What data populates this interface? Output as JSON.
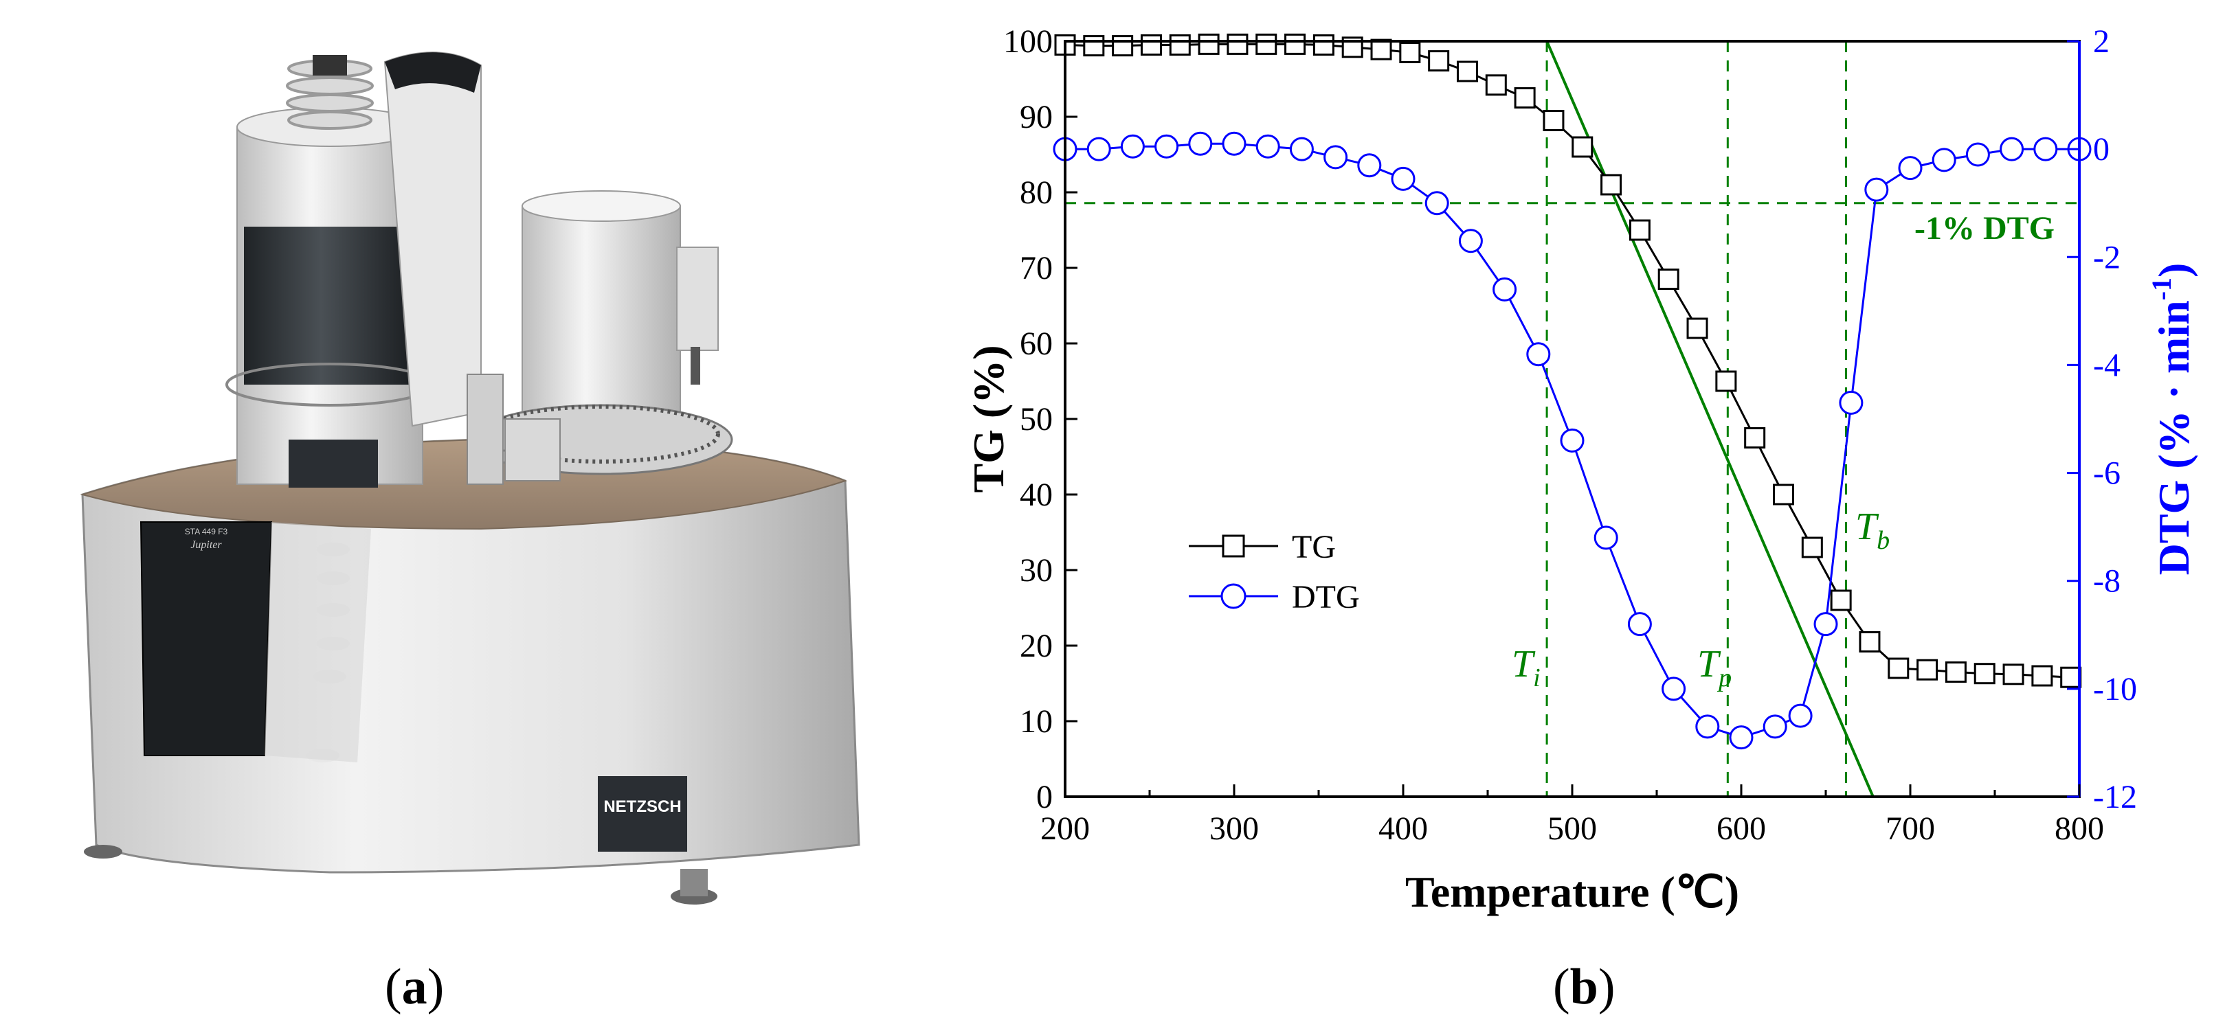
{
  "panel_a": {
    "caption_open": "(",
    "caption_letter": "a",
    "caption_close": ")",
    "device_brand": "NETZSCH",
    "device_model": "STA 449 F3",
    "device_series": "Jupiter"
  },
  "panel_b": {
    "caption_open": "(",
    "caption_letter": "b",
    "caption_close": ")"
  },
  "chart_data": {
    "type": "line",
    "xlabel": "Temperature (℃)",
    "ylabel_left": "TG (%)",
    "ylabel_right": "DTG (% · min",
    "ylabel_right_sup": "-1",
    "ylabel_right_close": ")",
    "xlim": [
      200,
      800
    ],
    "ylim_left": [
      0,
      100
    ],
    "ylim_right": [
      -12,
      2
    ],
    "x_ticks": [
      200,
      300,
      400,
      500,
      600,
      700,
      800
    ],
    "y_left_ticks": [
      0,
      10,
      20,
      30,
      40,
      50,
      60,
      70,
      80,
      90,
      100
    ],
    "y_right_ticks": [
      -12,
      -10,
      -8,
      -6,
      -4,
      -2,
      0,
      2
    ],
    "grid": false,
    "legend_position": "center-left",
    "series": [
      {
        "name": "TG",
        "axis": "left",
        "color": "#000000",
        "marker": "square",
        "x": [
          200,
          217,
          234,
          251,
          268,
          285,
          302,
          319,
          336,
          353,
          370,
          387,
          404,
          421,
          438,
          455,
          472,
          489,
          506,
          523,
          540,
          557,
          574,
          591,
          608,
          625,
          642,
          659,
          676,
          693,
          710,
          727,
          744,
          761,
          778,
          795
        ],
        "y": [
          99.5,
          99.4,
          99.4,
          99.5,
          99.5,
          99.6,
          99.6,
          99.6,
          99.6,
          99.5,
          99.2,
          98.9,
          98.5,
          97.4,
          96.0,
          94.2,
          92.5,
          89.5,
          86.0,
          81.0,
          75.0,
          68.5,
          62.0,
          55.0,
          47.5,
          40.0,
          33.0,
          26.0,
          20.5,
          17.0,
          16.8,
          16.5,
          16.3,
          16.2,
          16.0,
          15.8
        ]
      },
      {
        "name": "DTG",
        "axis": "right",
        "color": "#0000ff",
        "marker": "circle",
        "x": [
          200,
          220,
          240,
          260,
          280,
          300,
          320,
          340,
          360,
          380,
          400,
          420,
          440,
          460,
          480,
          500,
          520,
          540,
          560,
          580,
          600,
          620,
          635,
          650,
          665,
          680,
          700,
          720,
          740,
          760,
          780,
          800
        ],
        "y": [
          0.0,
          0.0,
          0.05,
          0.05,
          0.1,
          0.1,
          0.05,
          0.0,
          -0.15,
          -0.3,
          -0.55,
          -1.0,
          -1.7,
          -2.6,
          -3.8,
          -5.4,
          -7.2,
          -8.8,
          -10.0,
          -10.7,
          -10.9,
          -10.7,
          -10.5,
          -8.8,
          -4.7,
          -0.75,
          -0.35,
          -0.2,
          -0.1,
          0.0,
          0.0,
          0.0
        ]
      }
    ],
    "annotations": {
      "ti_label": "T",
      "ti_sub": "i",
      "ti_x": 485,
      "tp_label": "T",
      "tp_sub": "p",
      "tp_x": 592,
      "tb_label": "T",
      "tb_sub": "b",
      "tb_x": 662,
      "dtg_threshold_label": "-1% DTG",
      "dtg_threshold_value": -1,
      "baseline_tg": 100,
      "tangent_points": [
        [
          485,
          100
        ],
        [
          678,
          0
        ]
      ],
      "guide_color": "#008000"
    }
  }
}
